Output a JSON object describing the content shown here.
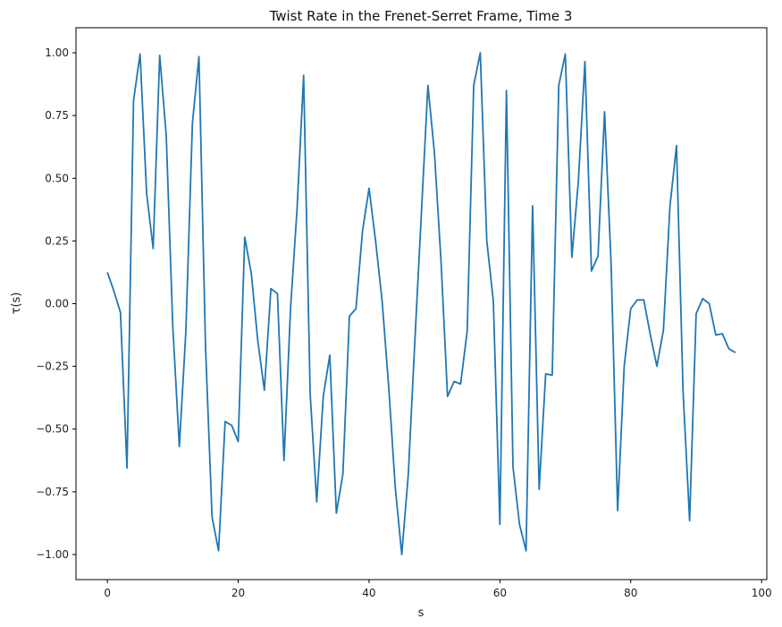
{
  "chart_data": {
    "type": "line",
    "title": "Twist Rate in the Frenet-Serret Frame, Time 3",
    "xlabel": "s",
    "ylabel": "τ(s)",
    "xlim": [
      -4.8,
      100.8
    ],
    "ylim": [
      -1.1,
      1.1
    ],
    "xticks": [
      0,
      20,
      40,
      60,
      80,
      100
    ],
    "xtick_labels": [
      "0",
      "20",
      "40",
      "60",
      "80",
      "100"
    ],
    "yticks": [
      -1.0,
      -0.75,
      -0.5,
      -0.25,
      0.0,
      0.25,
      0.5,
      0.75,
      1.0
    ],
    "ytick_labels": [
      "−1.00",
      "−0.75",
      "−0.50",
      "−0.25",
      "0.00",
      "0.25",
      "0.50",
      "0.75",
      "1.00"
    ],
    "grid": false,
    "line_color": "#1f77b4",
    "series": [
      {
        "x": [
          0,
          1,
          2,
          3,
          4,
          5,
          6,
          7,
          8,
          9,
          10,
          11,
          12,
          13,
          14,
          15,
          16,
          17,
          18,
          19,
          20,
          21,
          22,
          23,
          24,
          25,
          26,
          27,
          28,
          29,
          30,
          31,
          32,
          33,
          34,
          35,
          36,
          37,
          38,
          39,
          40,
          41,
          42,
          43,
          44,
          45,
          46,
          47,
          48,
          49,
          50,
          51,
          52,
          53,
          54,
          55,
          56,
          57,
          58,
          59,
          60,
          61,
          62,
          63,
          64,
          65,
          66,
          67,
          68,
          69,
          70,
          71,
          72,
          73,
          74,
          75,
          76,
          77,
          78,
          79,
          80,
          81,
          82,
          83,
          84,
          85,
          86,
          87,
          88,
          89,
          90,
          91,
          92,
          93,
          94,
          95,
          96
        ],
        "values": [
          0.125,
          0.05,
          -0.035,
          -0.655,
          0.81,
          0.995,
          0.44,
          0.22,
          0.99,
          0.67,
          -0.09,
          -0.57,
          -0.11,
          0.72,
          0.985,
          -0.17,
          -0.85,
          -0.985,
          -0.47,
          -0.485,
          -0.55,
          0.265,
          0.12,
          -0.15,
          -0.345,
          0.06,
          0.04,
          -0.625,
          -0.02,
          0.38,
          0.91,
          -0.36,
          -0.79,
          -0.37,
          -0.205,
          -0.835,
          -0.68,
          -0.05,
          -0.02,
          0.29,
          0.46,
          0.25,
          0.01,
          -0.33,
          -0.73,
          -1.0,
          -0.68,
          -0.15,
          0.36,
          0.87,
          0.6,
          0.17,
          -0.37,
          -0.31,
          -0.32,
          -0.11,
          0.87,
          1.0,
          0.25,
          0.01,
          -0.88,
          0.85,
          -0.65,
          -0.88,
          -0.985,
          0.39,
          -0.74,
          -0.28,
          -0.285,
          0.87,
          0.995,
          0.185,
          0.49,
          0.965,
          0.13,
          0.19,
          0.765,
          0.16,
          -0.825,
          -0.25,
          -0.02,
          0.015,
          0.015,
          -0.125,
          -0.25,
          -0.105,
          0.39,
          0.63,
          -0.35,
          -0.865,
          -0.04,
          0.02,
          0.0,
          -0.125,
          -0.12,
          -0.18,
          -0.195
        ]
      }
    ]
  }
}
